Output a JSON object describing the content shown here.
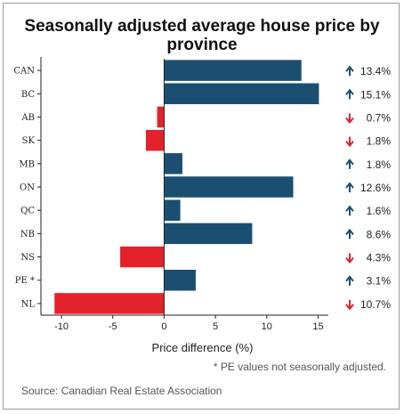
{
  "title_lines": [
    "Seasonally adjusted average house price by",
    "province"
  ],
  "footnote": "* PE values not seasonally adjusted.",
  "source": "Source: Canadian Real Estate Association",
  "colors": {
    "positive": "#1b4f72",
    "negative": "#e3222b",
    "up_arrow": "#1b4f72",
    "down_arrow": "#e3222b"
  },
  "chart_data": {
    "type": "bar",
    "orientation": "horizontal",
    "title": "Seasonally adjusted average house price by province",
    "xlabel": "Price difference (%)",
    "ylabel": "",
    "xlim": [
      -12,
      16
    ],
    "xticks": [
      -10,
      -5,
      0,
      5,
      10,
      15
    ],
    "grid": false,
    "categories": [
      "CAN",
      "BC",
      "AB",
      "SK",
      "MB",
      "ON",
      "QC",
      "NB",
      "NS",
      "PE *",
      "NL"
    ],
    "values": [
      13.4,
      15.1,
      -0.7,
      -1.8,
      1.8,
      12.6,
      1.6,
      8.6,
      -4.3,
      3.1,
      -10.7
    ],
    "value_labels": [
      "13.4%",
      "15.1%",
      "0.7%",
      "1.8%",
      "1.8%",
      "12.6%",
      "1.6%",
      "8.6%",
      "4.3%",
      "3.1%",
      "10.7%"
    ]
  }
}
